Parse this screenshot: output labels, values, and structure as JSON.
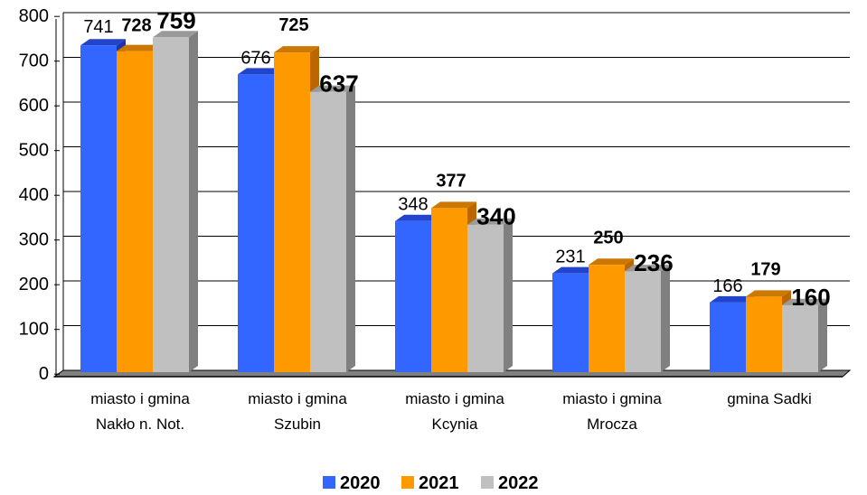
{
  "chart_data": {
    "type": "bar",
    "categories": [
      [
        "miasto i gmina",
        "Nakło n. Not."
      ],
      [
        "miasto i gmina",
        "Szubin"
      ],
      [
        "miasto i gmina",
        "Kcynia"
      ],
      [
        "miasto i gmina",
        "Mrocza"
      ],
      [
        "gmina Sadki"
      ]
    ],
    "series": [
      {
        "name": "2020",
        "values": [
          741,
          676,
          348,
          231,
          166
        ],
        "color": "#3366ff"
      },
      {
        "name": "2021",
        "values": [
          728,
          725,
          377,
          250,
          179
        ],
        "color": "#ff9900"
      },
      {
        "name": "2022",
        "values": [
          759,
          637,
          340,
          236,
          160
        ],
        "color": "#c0c0c0"
      }
    ],
    "ylim": [
      0,
      800
    ],
    "yticks": [
      "0",
      "100",
      "200",
      "300",
      "400",
      "500",
      "600",
      "700",
      "800"
    ],
    "grid": true,
    "legend_position": "bottom",
    "title": "",
    "xlabel": "",
    "ylabel": ""
  }
}
